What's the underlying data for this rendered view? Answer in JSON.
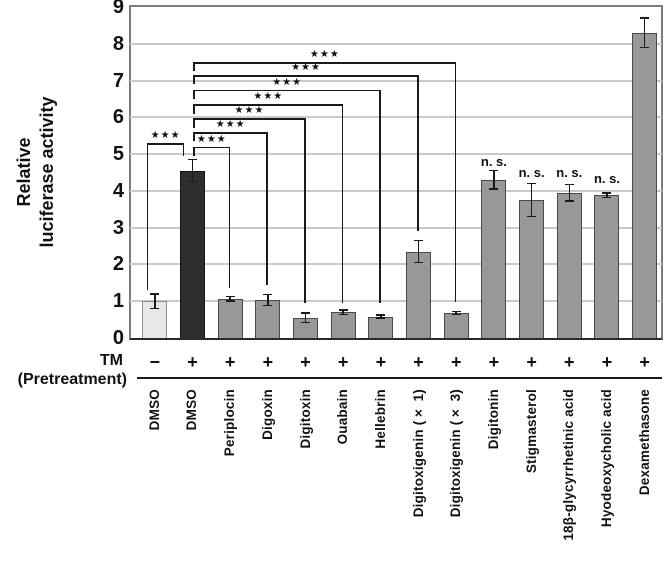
{
  "figure": {
    "ylabel_line1": "Relative",
    "ylabel_line2": "luciferase activity",
    "tm_label": "TM",
    "pretreatment_label": "(Pretreatment)"
  },
  "chart_data": {
    "type": "bar",
    "title": "",
    "xlabel": "",
    "ylabel": "Relative luciferase activity",
    "ylim": [
      0,
      9
    ],
    "yticks": [
      0,
      1,
      2,
      3,
      4,
      5,
      6,
      7,
      8,
      9
    ],
    "grid": "horizontal",
    "legend": "none",
    "categories": [
      "DMSO",
      "DMSO",
      "Periplocin",
      "Digoxin",
      "Digitoxin",
      "Ouabain",
      "Hellebrin",
      "Digitoxigenin (× 1)",
      "Digitoxigenin (× 3)",
      "Digitonin",
      "Stigmasterol",
      "18β-glycyrrhetinic acid",
      "Hyodeoxycholic acid",
      "Dexamethasone"
    ],
    "values": [
      1.0,
      4.55,
      1.07,
      1.03,
      0.55,
      0.7,
      0.58,
      2.35,
      0.68,
      4.3,
      3.75,
      3.95,
      3.88,
      8.3
    ],
    "errors": [
      0.2,
      0.3,
      0.06,
      0.15,
      0.13,
      0.06,
      0.04,
      0.3,
      0.04,
      0.25,
      0.45,
      0.22,
      0.06,
      0.4
    ],
    "tm_pretreatment": [
      "−",
      "+",
      "+",
      "+",
      "+",
      "+",
      "+",
      "+",
      "+",
      "+",
      "+",
      "+",
      "+",
      "+"
    ],
    "bar_styles": [
      "control",
      "dark",
      "gray",
      "gray",
      "gray",
      "gray",
      "gray",
      "gray",
      "gray",
      "gray",
      "gray",
      "gray",
      "gray",
      "gray"
    ],
    "significance": {
      "bracket_label": "***",
      "brackets": [
        {
          "a": 0,
          "b": 1,
          "y": 5.3,
          "drop_a": 1.3,
          "drop_b": 4.95,
          "off_a": -8,
          "off_b": -8
        },
        {
          "a": 1,
          "b": 2,
          "y": 5.2,
          "drop_a": 4.95,
          "drop_b": 1.36,
          "off_a": 1,
          "off_b": 0
        },
        {
          "a": 1,
          "b": 3,
          "y": 5.6,
          "drop_a": 5.35,
          "drop_b": 1.43,
          "off_a": 1,
          "off_b": 0
        },
        {
          "a": 1,
          "b": 4,
          "y": 5.97,
          "drop_a": 5.72,
          "drop_b": 0.95,
          "off_a": 1,
          "off_b": 0
        },
        {
          "a": 1,
          "b": 5,
          "y": 6.35,
          "drop_a": 6.1,
          "drop_b": 0.95,
          "off_a": 1,
          "off_b": 0
        },
        {
          "a": 1,
          "b": 6,
          "y": 6.75,
          "drop_a": 6.5,
          "drop_b": 0.95,
          "off_a": 1,
          "off_b": 0
        },
        {
          "a": 1,
          "b": 7,
          "y": 7.15,
          "drop_a": 6.9,
          "drop_b": 2.9,
          "off_a": 1,
          "off_b": 0
        },
        {
          "a": 1,
          "b": 8,
          "y": 7.5,
          "drop_a": 7.25,
          "drop_b": 0.97,
          "off_a": 1,
          "off_b": 0
        }
      ],
      "ns_label": "n. s.",
      "ns_above_bars": [
        {
          "bar": 9,
          "y": 4.78
        },
        {
          "bar": 10,
          "y": 4.5
        },
        {
          "bar": 11,
          "y": 4.5
        },
        {
          "bar": 12,
          "y": 4.32
        }
      ]
    },
    "colors": {
      "control_fill": "#e7e7e7",
      "control_border": "#8f8f8f",
      "dark_fill": "#2e2e2e",
      "dark_border": "#141414",
      "gray_fill": "#989898",
      "gray_border": "#4a4a4a",
      "grid": "#cacaca",
      "frame": "#7d7d7d",
      "axis": "#2a2a2a",
      "annotation": "#111111"
    }
  }
}
